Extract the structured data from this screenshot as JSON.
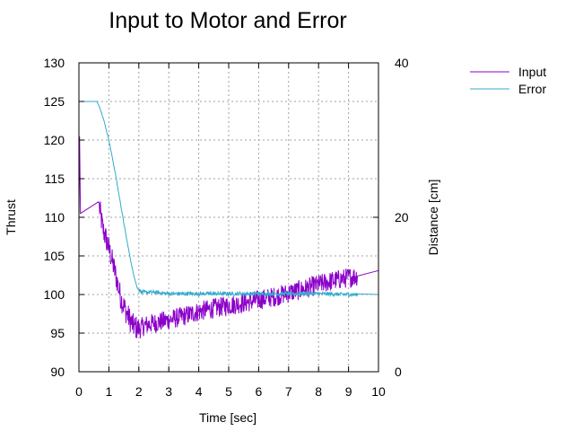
{
  "chart_data": {
    "type": "line",
    "title": "Input to Motor and Error",
    "xlabel": "Time [sec]",
    "ylabel": "Thrust",
    "y2label": "Distance [cm]",
    "xlim": [
      0,
      10
    ],
    "ylim": [
      90,
      130
    ],
    "y2lim": [
      0,
      40
    ],
    "x_ticks": [
      "0",
      "1",
      "2",
      "3",
      "4",
      "5",
      "6",
      "7",
      "8",
      "9",
      "10"
    ],
    "y_ticks": [
      "90",
      "95",
      "100",
      "105",
      "110",
      "115",
      "120",
      "125",
      "130"
    ],
    "y2_ticks": [
      "0",
      "20",
      "40"
    ],
    "grid": true,
    "legend_position": "top-right outside",
    "series": [
      {
        "name": "Input",
        "axis": "left",
        "color": "#8b00c8",
        "noisy": true,
        "x": [
          0,
          0.02,
          0.05,
          0.65,
          0.8,
          1.0,
          1.2,
          1.4,
          1.6,
          1.8,
          2.0,
          2.2,
          2.5,
          3.0,
          3.5,
          4.0,
          4.5,
          5.0,
          5.5,
          6.0,
          6.5,
          7.0,
          7.5,
          8.0,
          8.5,
          9.0,
          9.3,
          10.0
        ],
        "y": [
          110.5,
          120.5,
          110.5,
          112,
          108.5,
          106,
          103,
          99.5,
          97.5,
          96,
          95.5,
          96,
          96.3,
          96.7,
          97.2,
          97.8,
          98.2,
          98.6,
          98.9,
          99.3,
          99.7,
          100.2,
          100.7,
          101.3,
          101.8,
          102.2,
          102.4,
          103.1
        ]
      },
      {
        "name": "Error",
        "axis": "right",
        "color": "#33aacc",
        "noisy": true,
        "x": [
          0,
          0.6,
          0.7,
          0.8,
          1.0,
          1.2,
          1.4,
          1.6,
          1.8,
          1.95,
          2.1,
          2.5,
          3,
          4,
          5,
          6,
          7,
          8,
          9,
          9.3,
          10
        ],
        "y": [
          35,
          35,
          34.2,
          33,
          30,
          26,
          21.5,
          17,
          13,
          10.8,
          10.3,
          10.3,
          10.1,
          10.1,
          10.1,
          10.1,
          10.1,
          10.1,
          10.0,
          10.0,
          10.0
        ]
      }
    ]
  }
}
